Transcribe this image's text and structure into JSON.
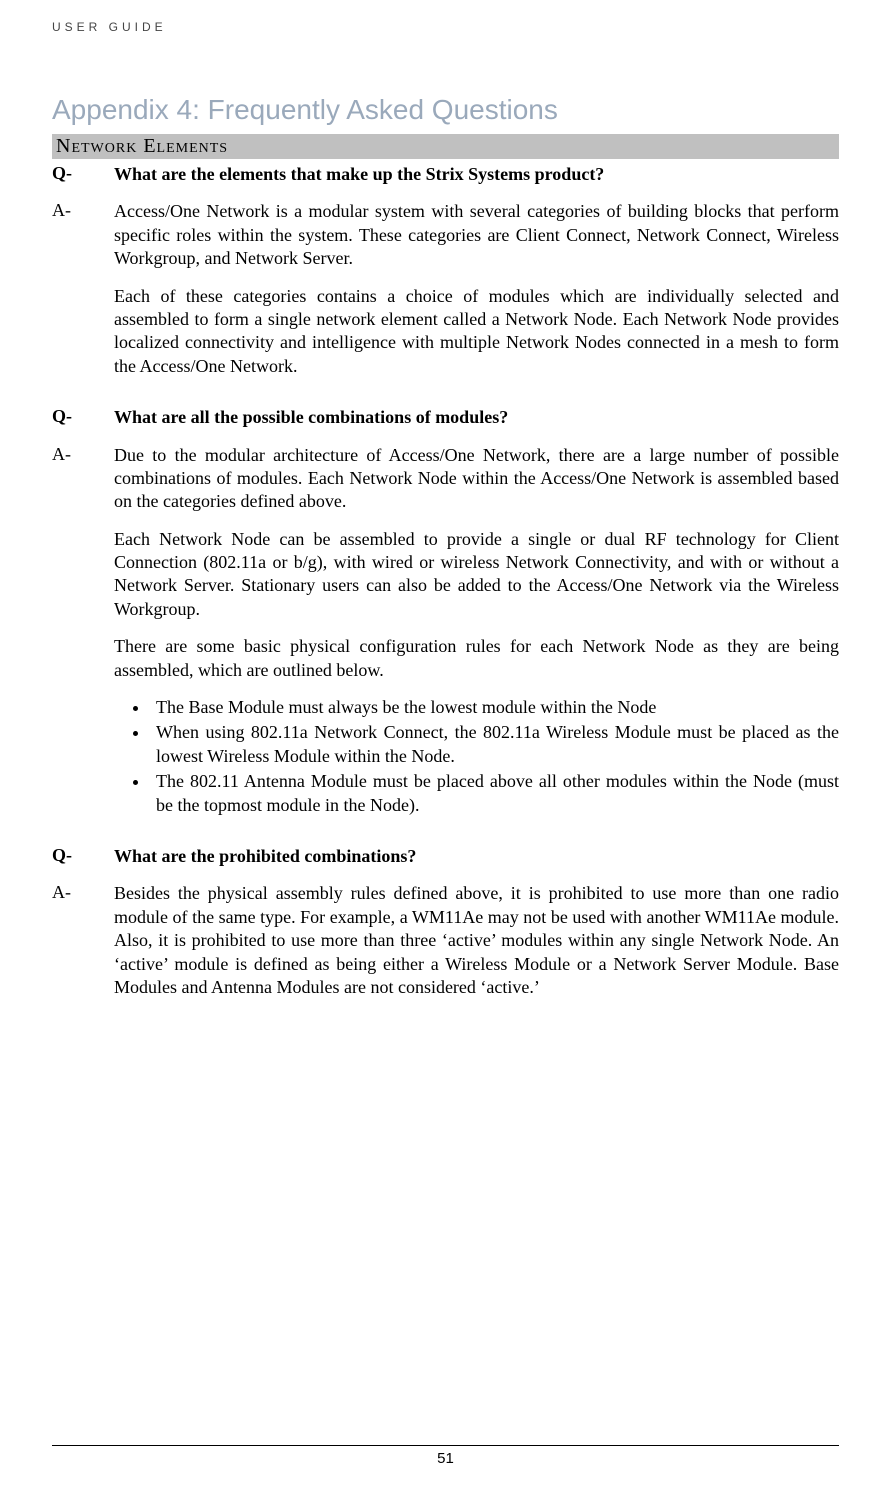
{
  "header": {
    "label": "USER GUIDE"
  },
  "title": "Appendix 4: Frequently Asked Questions",
  "section": {
    "label": "Network Elements"
  },
  "qa": [
    {
      "q_prefix": "Q-",
      "q_text": "What are the elements that make up the Strix Systems product?",
      "a_prefix": "A-",
      "a_paras": [
        "Access/One Network is a modular system with several categories of building blocks that perform specific roles within the system. These categories are Client Connect, Network Connect, Wireless Workgroup, and Network Server.",
        "Each of these categories contains a choice of modules which are individually selected and assembled to form a single network element called a Network Node. Each Network Node provides localized connectivity and intelligence with multiple Network Nodes connected in a mesh to form the Access/One Network."
      ],
      "bullets": []
    },
    {
      "q_prefix": "Q-",
      "q_text": "What are all the possible combinations of modules?",
      "a_prefix": "A-",
      "a_paras": [
        "Due to the modular architecture of Access/One Network, there are a large number of possible combinations of modules. Each Network Node within the Access/One Network is assembled based on the categories defined above.",
        "Each Network Node can be assembled to provide a single or dual RF technology for Client Connection (802.11a or b/g), with wired or wireless Network Connectivity, and with or without a Network Server. Stationary users can also be added to the Access/One Network via the Wireless Workgroup.",
        "There are some basic physical configuration rules for each Network Node as they are being assembled, which are outlined below."
      ],
      "bullets": [
        "The Base Module must always be the lowest module within the Node",
        "When using 802.11a Network Connect, the 802.11a Wireless Module must be placed as the lowest Wireless Module within the Node.",
        "The 802.11 Antenna Module must be placed above all other modules within the Node (must be the topmost module in the Node)."
      ]
    },
    {
      "q_prefix": "Q-",
      "q_text": "What are the prohibited combinations?",
      "a_prefix": "A-",
      "a_paras": [
        "Besides the physical assembly rules defined above, it is prohibited to use more than one radio module of the same type. For example, a WM11Ae may not be used with another WM11Ae module. Also, it is prohibited to use more than three ‘active’ modules within any single Network Node. An ‘active’ module is defined as being either a Wireless Module or a Network Server Module. Base Modules and Antenna Modules are not considered ‘active.’"
      ],
      "bullets": []
    }
  ],
  "footer": {
    "page_number": "51"
  },
  "colors": {
    "title_color": "#9aa9bb",
    "section_bg": "#c0c0c0",
    "text_color": "#000000",
    "header_color": "#444444",
    "background": "#ffffff"
  },
  "typography": {
    "body_font": "Georgia, serif",
    "title_font": "Verdana, sans-serif",
    "body_size_pt": 14,
    "title_size_pt": 21,
    "section_size_pt": 15
  }
}
